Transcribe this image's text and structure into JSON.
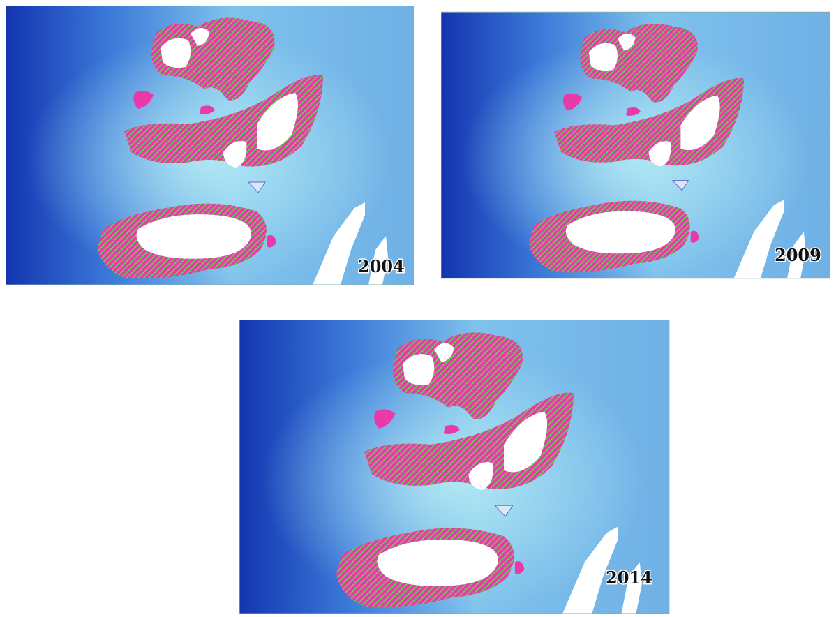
{
  "panels": [
    {
      "year": "2004"
    },
    {
      "year": "2009"
    },
    {
      "year": "2014"
    }
  ]
}
